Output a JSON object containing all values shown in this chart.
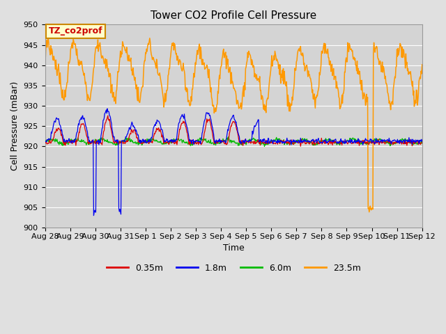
{
  "title": "Tower CO2 Profile Cell Pressure",
  "xlabel": "Time",
  "ylabel": "Cell Pressure (mBar)",
  "ylim": [
    900,
    950
  ],
  "yticks": [
    900,
    905,
    910,
    915,
    920,
    925,
    930,
    935,
    940,
    945,
    950
  ],
  "xtick_labels": [
    "Aug 28",
    "Aug 29",
    "Aug 30",
    "Aug 31",
    "Sep 1",
    "Sep 2",
    "Sep 3",
    "Sep 4",
    "Sep 5",
    "Sep 6",
    "Sep 7",
    "Sep 8",
    "Sep 9",
    "Sep 10",
    "Sep 11",
    "Sep 12"
  ],
  "legend_labels": [
    "0.35m",
    "1.8m",
    "6.0m",
    "23.5m"
  ],
  "line_colors": [
    "#dd0000",
    "#0000ee",
    "#00bb00",
    "#ff9900"
  ],
  "background_color": "#e0e0e0",
  "plot_bg_color": "#d4d4d4",
  "annotation_text": "TZ_co2prof",
  "annotation_box_facecolor": "#ffffcc",
  "annotation_box_edgecolor": "#cc8800",
  "annotation_text_color": "#cc0000",
  "title_fontsize": 11,
  "axis_fontsize": 9,
  "tick_fontsize": 8,
  "legend_fontsize": 9,
  "figsize": [
    6.4,
    4.8
  ],
  "dpi": 100
}
